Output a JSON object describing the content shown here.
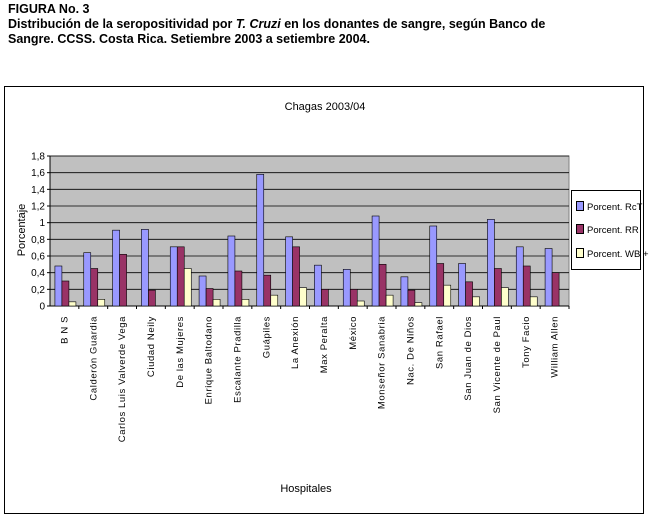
{
  "caption": {
    "line1": "FIGURA No. 3",
    "line2_prefix": "Distribución de la seropositividad por ",
    "line2_italic": "T. Cruzi",
    "line2_suffix": " en los donantes de sangre, según Banco de",
    "line3": "Sangre. CCSS. Costa Rica. Setiembre 2003 a setiembre 2004."
  },
  "colors": {
    "plot_bg": "#c0c0c0",
    "series": [
      "#9999ff",
      "#993366",
      "#ffffcc"
    ]
  },
  "chart_data": {
    "type": "bar",
    "title": "Chagas 2003/04",
    "xlabel": "Hospitales",
    "ylabel": "Porcentaje",
    "ylim": [
      0,
      1.8
    ],
    "yticks": [
      "0",
      "0,2",
      "0,4",
      "0,6",
      "0,8",
      "1",
      "1,2",
      "1,4",
      "1,6",
      "1,8"
    ],
    "grid": true,
    "legend_position": "right",
    "categories": [
      "B N S",
      "Calderón Guardia",
      "Carlos Luis Valverde Vega",
      "Ciudad Neily",
      "De las Mujeres",
      "Enrique Baltodano",
      "Escalante Pradilla",
      "Guápiles",
      "La Anexión",
      "Max Peralta",
      "México",
      "Monseñor Sanabria",
      "Nac. De Niños",
      "San Rafael",
      "San Juan de Dios",
      "San Vicente de Paul",
      "Tony Facio",
      "William Allen"
    ],
    "series": [
      {
        "name": "Porcent. RcT",
        "values": [
          0.48,
          0.64,
          0.91,
          0.92,
          0.71,
          0.36,
          0.84,
          1.58,
          0.83,
          0.49,
          0.44,
          1.08,
          0.35,
          0.96,
          0.51,
          1.04,
          0.71,
          0.69
        ]
      },
      {
        "name": "Porcent. RR",
        "values": [
          0.3,
          0.45,
          0.62,
          0.19,
          0.71,
          0.21,
          0.42,
          0.37,
          0.71,
          0.2,
          0.2,
          0.5,
          0.19,
          0.51,
          0.29,
          0.45,
          0.48,
          0.4
        ]
      },
      {
        "name": "Porcent. WB +",
        "values": [
          0.05,
          0.08,
          0,
          0,
          0.45,
          0.08,
          0.08,
          0.13,
          0.22,
          0,
          0.06,
          0.13,
          0.04,
          0.25,
          0.11,
          0.22,
          0.11,
          0
        ]
      }
    ]
  }
}
